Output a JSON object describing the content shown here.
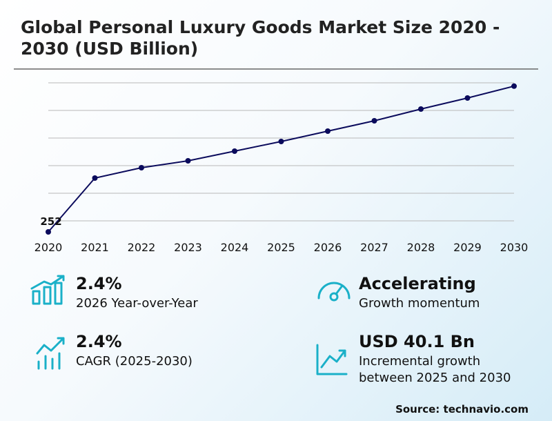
{
  "chart_data": {
    "type": "line",
    "title": "Global Personal Luxury Goods Market Size 2020 - 2030 (USD Billion)",
    "categories": [
      "2020",
      "2021",
      "2022",
      "2023",
      "2024",
      "2025",
      "2026",
      "2027",
      "2028",
      "2029",
      "2030"
    ],
    "series": [
      {
        "color": "#0b0b5c",
        "values": [
          252,
          291,
          298.5,
          303.5,
          310.5,
          317.5,
          325,
          332.5,
          341,
          349,
          357.6
        ]
      }
    ],
    "value_labels": [
      "252",
      null,
      null,
      null,
      null,
      null,
      null,
      null,
      null,
      null,
      null
    ],
    "ylim": [
      250,
      360
    ],
    "yticks": [
      260,
      280,
      300,
      320,
      340,
      360
    ],
    "show_ytick_labels": false,
    "grid": true
  },
  "stats": [
    {
      "value": "2.4%",
      "label": "2026 Year-over-Year"
    },
    {
      "value": "Accelerating",
      "label": "Growth momentum"
    },
    {
      "value": "2.4%",
      "label": "CAGR (2025-2030)"
    },
    {
      "value": "USD 40.1 Bn",
      "label": "Incremental growth between 2025 and 2030"
    }
  ],
  "source": "Source: technavio.com"
}
